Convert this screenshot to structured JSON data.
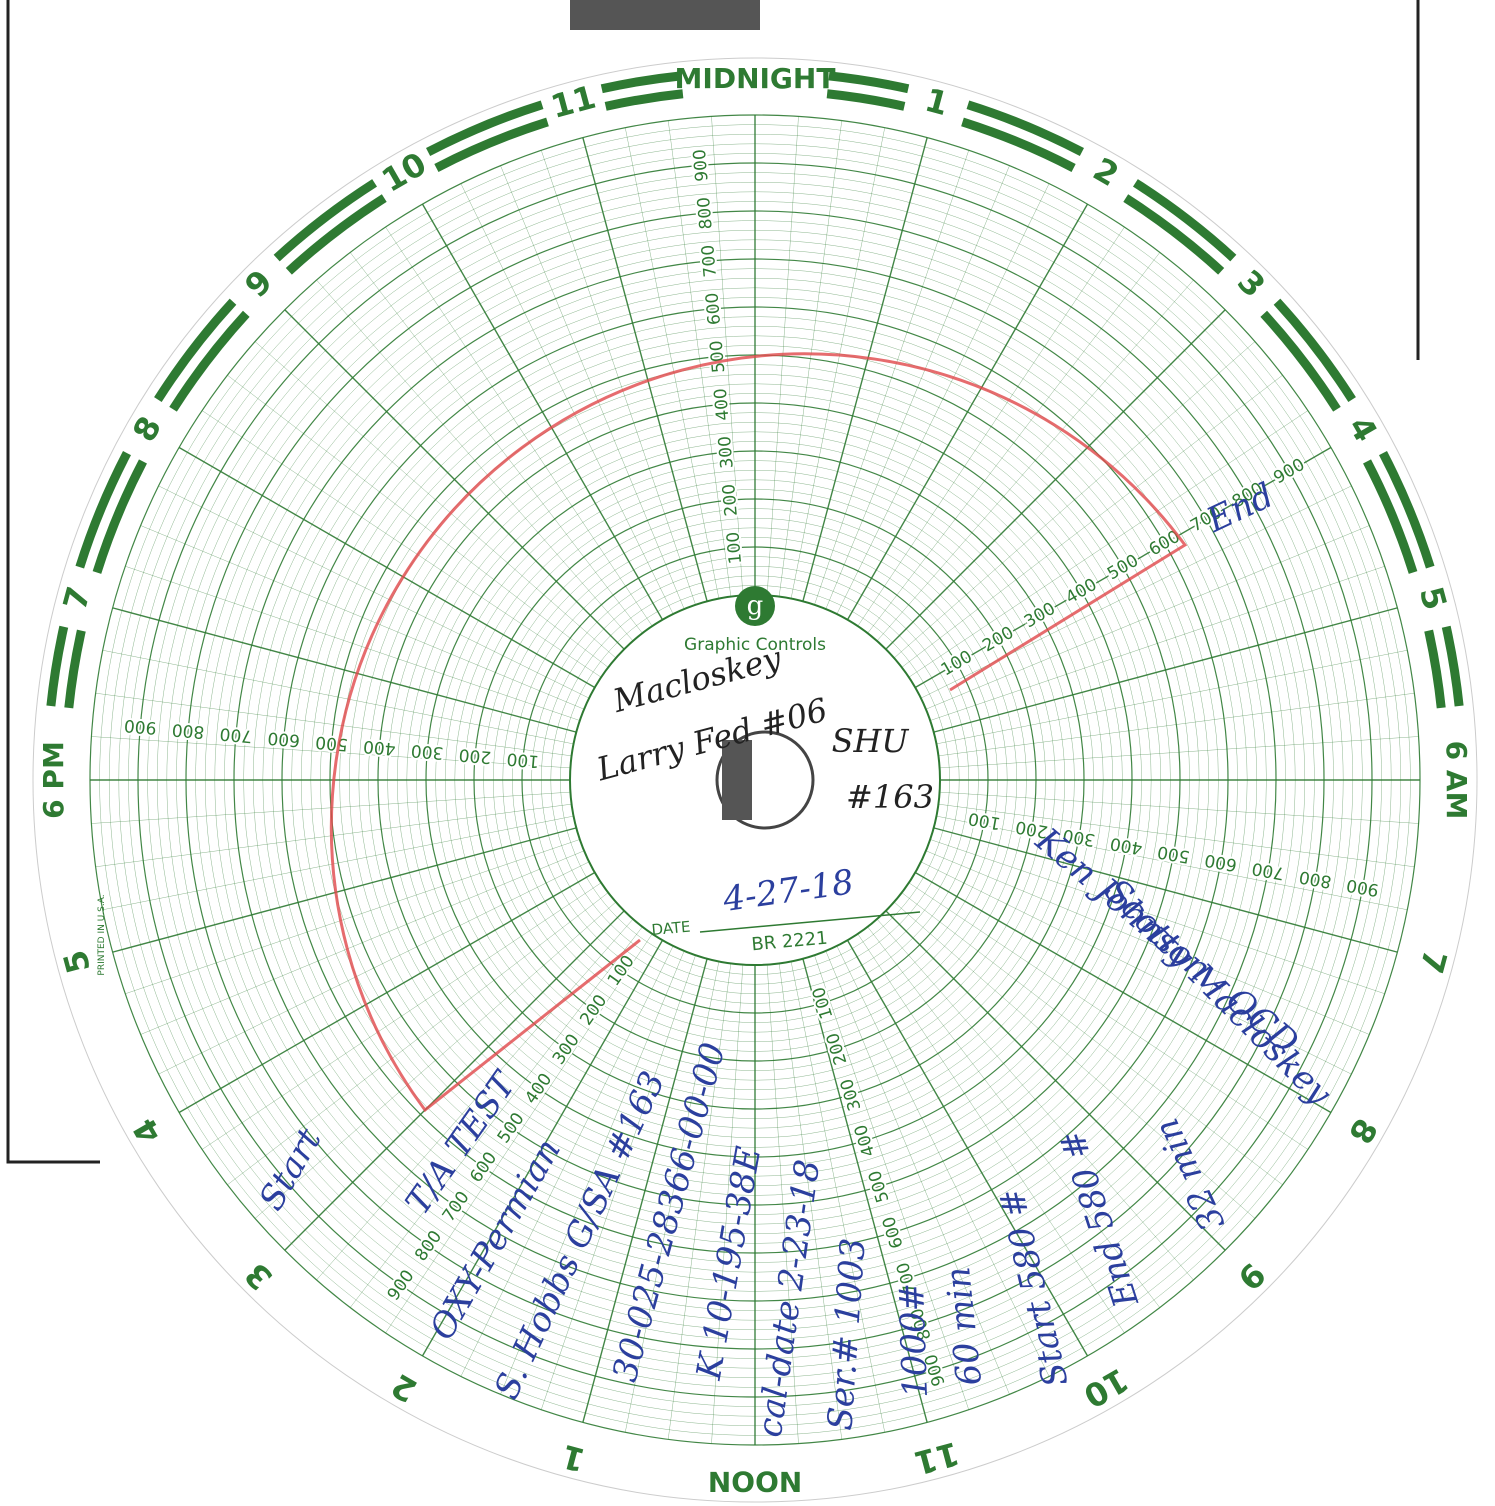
{
  "chart_face": {
    "brand": "Graphic Controls",
    "hours": [
      "MIDNIGHT",
      "1",
      "2",
      "3",
      "4",
      "5",
      "6 AM",
      "7",
      "8",
      "9",
      "10",
      "11",
      "NOON",
      "1",
      "2",
      "3",
      "4",
      "5",
      "6 PM",
      "7",
      "8",
      "9",
      "10",
      "11"
    ],
    "scale": [
      100,
      200,
      300,
      400,
      500,
      600,
      700,
      800,
      900
    ],
    "date_label": "DATE",
    "chart_number": "BR 2221",
    "imprint": "PRINTED IN U.S.A."
  },
  "handwriting": {
    "well_name": "Macloskey",
    "operator": "Larry Fed #06",
    "unit": "SHU",
    "unit_number": "#163",
    "date": "4-27-18",
    "end": "End",
    "start": "Start",
    "notes": [
      "T/A TEST",
      "OXY-Permian",
      "S. Hobbs G/SA #163",
      "30-025-28366-00-00",
      "K 10-195-38E",
      "cal-date 2-23-18",
      "Ser.# 1003",
      "1000#",
      "60 min",
      "Start 580 #",
      "End 580 #",
      "32 min"
    ],
    "witness": [
      "Ken Johnson - OCD",
      "Scotty Macloskey"
    ]
  }
}
